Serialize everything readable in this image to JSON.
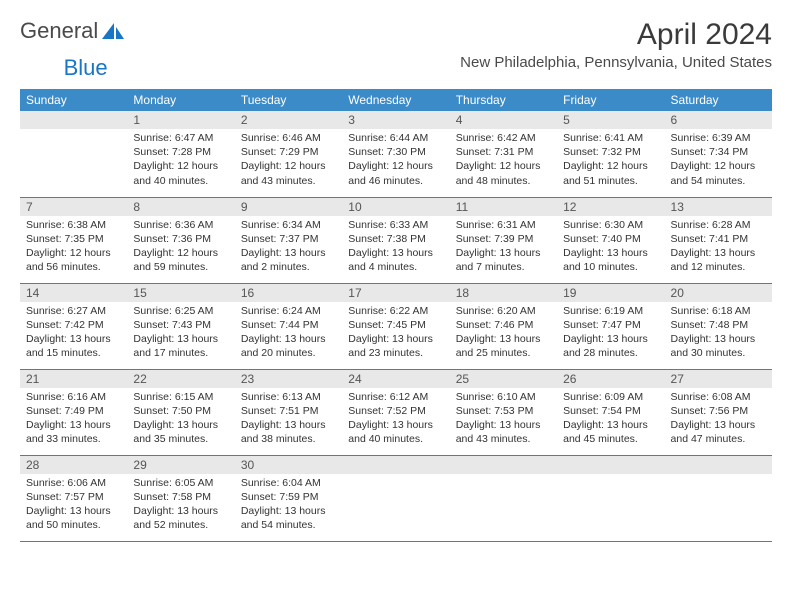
{
  "brand": {
    "part1": "General",
    "part2": "Blue"
  },
  "title": "April 2024",
  "location": "New Philadelphia, Pennsylvania, United States",
  "colors": {
    "header_bg": "#3b8bc9",
    "header_text": "#ffffff",
    "daynum_bg": "#e8e8e8",
    "border": "#5a7a9a",
    "brand_blue": "#1976c5"
  },
  "day_headers": [
    "Sunday",
    "Monday",
    "Tuesday",
    "Wednesday",
    "Thursday",
    "Friday",
    "Saturday"
  ],
  "weeks": [
    [
      {
        "n": "",
        "sunrise": "",
        "sunset": "",
        "daylight": ""
      },
      {
        "n": "1",
        "sunrise": "Sunrise: 6:47 AM",
        "sunset": "Sunset: 7:28 PM",
        "daylight": "Daylight: 12 hours and 40 minutes."
      },
      {
        "n": "2",
        "sunrise": "Sunrise: 6:46 AM",
        "sunset": "Sunset: 7:29 PM",
        "daylight": "Daylight: 12 hours and 43 minutes."
      },
      {
        "n": "3",
        "sunrise": "Sunrise: 6:44 AM",
        "sunset": "Sunset: 7:30 PM",
        "daylight": "Daylight: 12 hours and 46 minutes."
      },
      {
        "n": "4",
        "sunrise": "Sunrise: 6:42 AM",
        "sunset": "Sunset: 7:31 PM",
        "daylight": "Daylight: 12 hours and 48 minutes."
      },
      {
        "n": "5",
        "sunrise": "Sunrise: 6:41 AM",
        "sunset": "Sunset: 7:32 PM",
        "daylight": "Daylight: 12 hours and 51 minutes."
      },
      {
        "n": "6",
        "sunrise": "Sunrise: 6:39 AM",
        "sunset": "Sunset: 7:34 PM",
        "daylight": "Daylight: 12 hours and 54 minutes."
      }
    ],
    [
      {
        "n": "7",
        "sunrise": "Sunrise: 6:38 AM",
        "sunset": "Sunset: 7:35 PM",
        "daylight": "Daylight: 12 hours and 56 minutes."
      },
      {
        "n": "8",
        "sunrise": "Sunrise: 6:36 AM",
        "sunset": "Sunset: 7:36 PM",
        "daylight": "Daylight: 12 hours and 59 minutes."
      },
      {
        "n": "9",
        "sunrise": "Sunrise: 6:34 AM",
        "sunset": "Sunset: 7:37 PM",
        "daylight": "Daylight: 13 hours and 2 minutes."
      },
      {
        "n": "10",
        "sunrise": "Sunrise: 6:33 AM",
        "sunset": "Sunset: 7:38 PM",
        "daylight": "Daylight: 13 hours and 4 minutes."
      },
      {
        "n": "11",
        "sunrise": "Sunrise: 6:31 AM",
        "sunset": "Sunset: 7:39 PM",
        "daylight": "Daylight: 13 hours and 7 minutes."
      },
      {
        "n": "12",
        "sunrise": "Sunrise: 6:30 AM",
        "sunset": "Sunset: 7:40 PM",
        "daylight": "Daylight: 13 hours and 10 minutes."
      },
      {
        "n": "13",
        "sunrise": "Sunrise: 6:28 AM",
        "sunset": "Sunset: 7:41 PM",
        "daylight": "Daylight: 13 hours and 12 minutes."
      }
    ],
    [
      {
        "n": "14",
        "sunrise": "Sunrise: 6:27 AM",
        "sunset": "Sunset: 7:42 PM",
        "daylight": "Daylight: 13 hours and 15 minutes."
      },
      {
        "n": "15",
        "sunrise": "Sunrise: 6:25 AM",
        "sunset": "Sunset: 7:43 PM",
        "daylight": "Daylight: 13 hours and 17 minutes."
      },
      {
        "n": "16",
        "sunrise": "Sunrise: 6:24 AM",
        "sunset": "Sunset: 7:44 PM",
        "daylight": "Daylight: 13 hours and 20 minutes."
      },
      {
        "n": "17",
        "sunrise": "Sunrise: 6:22 AM",
        "sunset": "Sunset: 7:45 PM",
        "daylight": "Daylight: 13 hours and 23 minutes."
      },
      {
        "n": "18",
        "sunrise": "Sunrise: 6:20 AM",
        "sunset": "Sunset: 7:46 PM",
        "daylight": "Daylight: 13 hours and 25 minutes."
      },
      {
        "n": "19",
        "sunrise": "Sunrise: 6:19 AM",
        "sunset": "Sunset: 7:47 PM",
        "daylight": "Daylight: 13 hours and 28 minutes."
      },
      {
        "n": "20",
        "sunrise": "Sunrise: 6:18 AM",
        "sunset": "Sunset: 7:48 PM",
        "daylight": "Daylight: 13 hours and 30 minutes."
      }
    ],
    [
      {
        "n": "21",
        "sunrise": "Sunrise: 6:16 AM",
        "sunset": "Sunset: 7:49 PM",
        "daylight": "Daylight: 13 hours and 33 minutes."
      },
      {
        "n": "22",
        "sunrise": "Sunrise: 6:15 AM",
        "sunset": "Sunset: 7:50 PM",
        "daylight": "Daylight: 13 hours and 35 minutes."
      },
      {
        "n": "23",
        "sunrise": "Sunrise: 6:13 AM",
        "sunset": "Sunset: 7:51 PM",
        "daylight": "Daylight: 13 hours and 38 minutes."
      },
      {
        "n": "24",
        "sunrise": "Sunrise: 6:12 AM",
        "sunset": "Sunset: 7:52 PM",
        "daylight": "Daylight: 13 hours and 40 minutes."
      },
      {
        "n": "25",
        "sunrise": "Sunrise: 6:10 AM",
        "sunset": "Sunset: 7:53 PM",
        "daylight": "Daylight: 13 hours and 43 minutes."
      },
      {
        "n": "26",
        "sunrise": "Sunrise: 6:09 AM",
        "sunset": "Sunset: 7:54 PM",
        "daylight": "Daylight: 13 hours and 45 minutes."
      },
      {
        "n": "27",
        "sunrise": "Sunrise: 6:08 AM",
        "sunset": "Sunset: 7:56 PM",
        "daylight": "Daylight: 13 hours and 47 minutes."
      }
    ],
    [
      {
        "n": "28",
        "sunrise": "Sunrise: 6:06 AM",
        "sunset": "Sunset: 7:57 PM",
        "daylight": "Daylight: 13 hours and 50 minutes."
      },
      {
        "n": "29",
        "sunrise": "Sunrise: 6:05 AM",
        "sunset": "Sunset: 7:58 PM",
        "daylight": "Daylight: 13 hours and 52 minutes."
      },
      {
        "n": "30",
        "sunrise": "Sunrise: 6:04 AM",
        "sunset": "Sunset: 7:59 PM",
        "daylight": "Daylight: 13 hours and 54 minutes."
      },
      {
        "n": "",
        "sunrise": "",
        "sunset": "",
        "daylight": ""
      },
      {
        "n": "",
        "sunrise": "",
        "sunset": "",
        "daylight": ""
      },
      {
        "n": "",
        "sunrise": "",
        "sunset": "",
        "daylight": ""
      },
      {
        "n": "",
        "sunrise": "",
        "sunset": "",
        "daylight": ""
      }
    ]
  ]
}
